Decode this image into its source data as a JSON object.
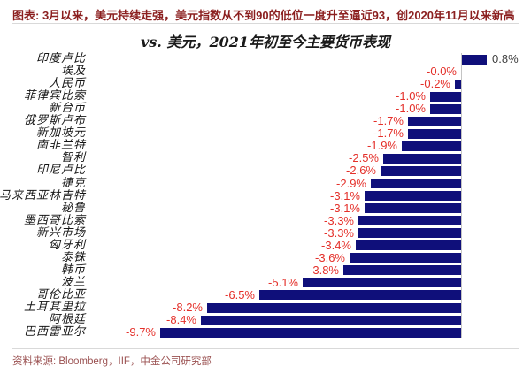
{
  "header": {
    "title": "图表: 3月以来，美元持续走强，美元指数从不到90的低位一度升至逼近93，创2020年11月以来新高"
  },
  "chart_data": {
    "type": "bar",
    "orientation": "horizontal",
    "title": "vs. 美元，2021年初至今主要货币表现",
    "categories": [
      "印度卢比",
      "埃及",
      "人民币",
      "菲律宾比索",
      "新台币",
      "俄罗斯卢布",
      "新加坡元",
      "南非兰特",
      "智利",
      "印尼卢比",
      "捷克",
      "马来西亚林吉特",
      "秘鲁",
      "墨西哥比索",
      "新兴市场",
      "匈牙利",
      "泰铢",
      "韩币",
      "波兰",
      "哥伦比亚",
      "土耳其里拉",
      "阿根廷",
      "巴西雷亚尔"
    ],
    "values": [
      0.8,
      0.0,
      -0.2,
      -1.0,
      -1.0,
      -1.7,
      -1.7,
      -1.9,
      -2.5,
      -2.6,
      -2.9,
      -3.1,
      -3.1,
      -3.3,
      -3.3,
      -3.4,
      -3.6,
      -3.8,
      -5.1,
      -6.5,
      -8.2,
      -8.4,
      -9.7
    ],
    "value_labels": [
      "0.8%",
      "-0.0%",
      "-0.2%",
      "-1.0%",
      "-1.0%",
      "-1.7%",
      "-1.7%",
      "-1.9%",
      "-2.5%",
      "-2.6%",
      "-2.9%",
      "-3.1%",
      "-3.1%",
      "-3.3%",
      "-3.3%",
      "-3.4%",
      "-3.6%",
      "-3.8%",
      "-5.1%",
      "-6.5%",
      "-8.2%",
      "-8.4%",
      "-9.7%"
    ],
    "xlim": [
      -10.5,
      1.2
    ],
    "xlabel": "",
    "ylabel": "",
    "grid": "none",
    "legend": "none",
    "bar_color": "#0f0f7a",
    "negative_label_color": "#e4302a",
    "positive_label_color": "#3d3d3d",
    "axis_color": "#c4c4c4"
  },
  "footer": {
    "source": "资料来源: Bloomberg，IIF，中金公司研究部"
  },
  "colors": {
    "header_maroon": "#8b1f1f",
    "footer_maroon": "#9a5050",
    "divider_gray": "#d9d9d9"
  }
}
